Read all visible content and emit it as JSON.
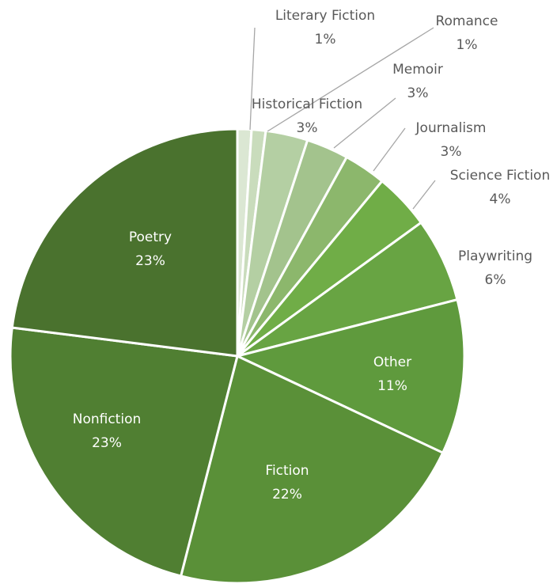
{
  "chart_data": {
    "type": "pie",
    "categories": [
      "Literary Fiction",
      "Romance",
      "Historical Fiction",
      "Memoir",
      "Journalism",
      "Science Fiction",
      "Playwriting",
      "Other",
      "Fiction",
      "Nonfiction",
      "Poetry"
    ],
    "values": [
      1,
      1,
      3,
      3,
      3,
      4,
      6,
      11,
      22,
      23,
      23
    ],
    "value_labels": [
      "1%",
      "1%",
      "3%",
      "3%",
      "3%",
      "4%",
      "6%",
      "11%",
      "22%",
      "23%",
      "23%"
    ],
    "colors": [
      "#dbe7d3",
      "#c9dcbc",
      "#b4cfa3",
      "#a3c38d",
      "#8cb76c",
      "#70ad47",
      "#68a443",
      "#5f9a3d",
      "#5a9038",
      "#507f32",
      "#4a722e"
    ]
  }
}
